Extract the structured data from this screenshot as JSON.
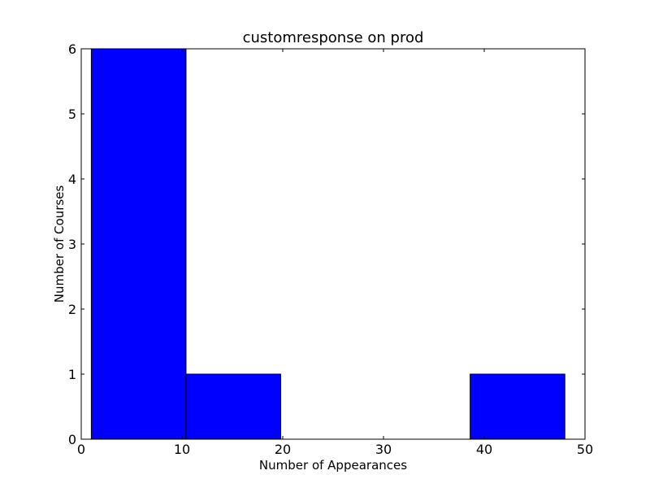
{
  "chart_data": {
    "type": "bar",
    "title": "customresponse on prod",
    "xlabel": "Number of Appearances",
    "ylabel": "Number of Courses",
    "xlim": [
      0,
      50
    ],
    "ylim": [
      0,
      6
    ],
    "xticks": [
      "0",
      "10",
      "20",
      "30",
      "40",
      "50"
    ],
    "yticks": [
      "0",
      "1",
      "2",
      "3",
      "4",
      "5",
      "6"
    ],
    "grid": false,
    "legend": "none",
    "bar_color": "#0000ff",
    "edge_color": "#000000",
    "bins": [
      {
        "start": 1.0,
        "end": 10.4,
        "value": 6
      },
      {
        "start": 10.4,
        "end": 19.8,
        "value": 1
      },
      {
        "start": 19.8,
        "end": 29.2,
        "value": 0
      },
      {
        "start": 29.2,
        "end": 38.6,
        "value": 0
      },
      {
        "start": 38.6,
        "end": 48.0,
        "value": 1
      }
    ]
  }
}
